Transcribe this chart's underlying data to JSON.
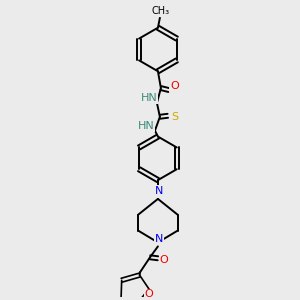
{
  "bg_color": "#ebebeb",
  "bond_color": "#000000",
  "atom_colors": {
    "N": "#0000ee",
    "O": "#ee0000",
    "S": "#ccaa00",
    "HN": "#3a8a7a",
    "C": "#000000"
  },
  "font_size_atom": 8,
  "fig_width": 3.0,
  "fig_height": 3.0,
  "dpi": 100
}
